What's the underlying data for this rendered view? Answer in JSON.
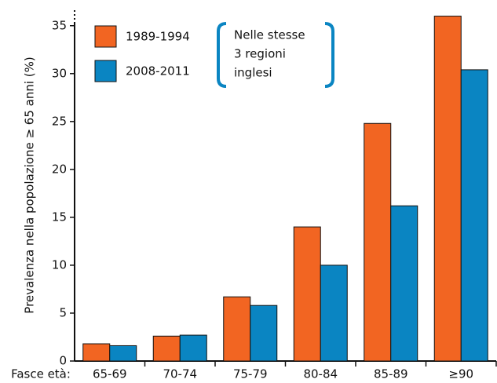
{
  "chart_data": {
    "type": "bar",
    "y_label": "Prevalenza nella popolazione ≥ 65 anni (%)",
    "x_label": "Fasce età:",
    "categories": [
      "65-69",
      "70-74",
      "75-79",
      "80-84",
      "85-89",
      "≥90"
    ],
    "series": [
      {
        "name": "1989-1994",
        "color": "#f26522",
        "values": [
          1.8,
          2.6,
          6.7,
          14.0,
          24.8,
          36.0
        ]
      },
      {
        "name": "2008-2011",
        "color": "#0a85c2",
        "values": [
          1.6,
          2.7,
          5.8,
          10.0,
          16.2,
          30.4
        ]
      }
    ],
    "annotation": [
      "Nelle stesse",
      "3 regioni",
      "inglesi"
    ],
    "annotation_color": "#0a85c2",
    "ylim": [
      0,
      36.7
    ],
    "yticks": [
      0,
      5,
      10,
      15,
      20,
      25,
      30,
      35
    ],
    "grid": false
  }
}
